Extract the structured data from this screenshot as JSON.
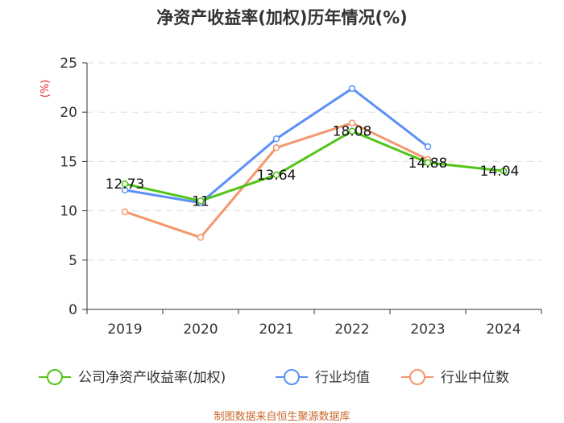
{
  "chart_data": {
    "type": "line",
    "title": "净资产收益率(加权)历年情况(%)",
    "ylabel": "(%)",
    "xlabel": "",
    "categories": [
      "2019",
      "2020",
      "2021",
      "2022",
      "2023",
      "2024"
    ],
    "ylim": [
      0,
      25
    ],
    "yticks": [
      0,
      5,
      10,
      15,
      20,
      25
    ],
    "grid": true,
    "legend_position": "bottom",
    "series": [
      {
        "name": "公司净资产收益率(加权)",
        "color": "#52c41a",
        "values": [
          12.73,
          11,
          13.64,
          18.08,
          14.88,
          14.04
        ],
        "labels": [
          "12.73",
          "11",
          "13.64",
          "18.08",
          "14.88",
          "14.04"
        ]
      },
      {
        "name": "行业均值",
        "color": "#5b8ff9",
        "values": [
          12.1,
          10.8,
          17.3,
          22.4,
          16.5,
          null
        ]
      },
      {
        "name": "行业中位数",
        "color": "#f4976c",
        "values": [
          9.9,
          7.3,
          16.4,
          18.9,
          15.2,
          null
        ]
      }
    ]
  },
  "colors": {
    "unit_label": "#e8282d",
    "source_note": "#c8692d",
    "axis": "#333333",
    "grid": "#dddddd"
  },
  "source_note": "制图数据来自恒生聚源数据库"
}
